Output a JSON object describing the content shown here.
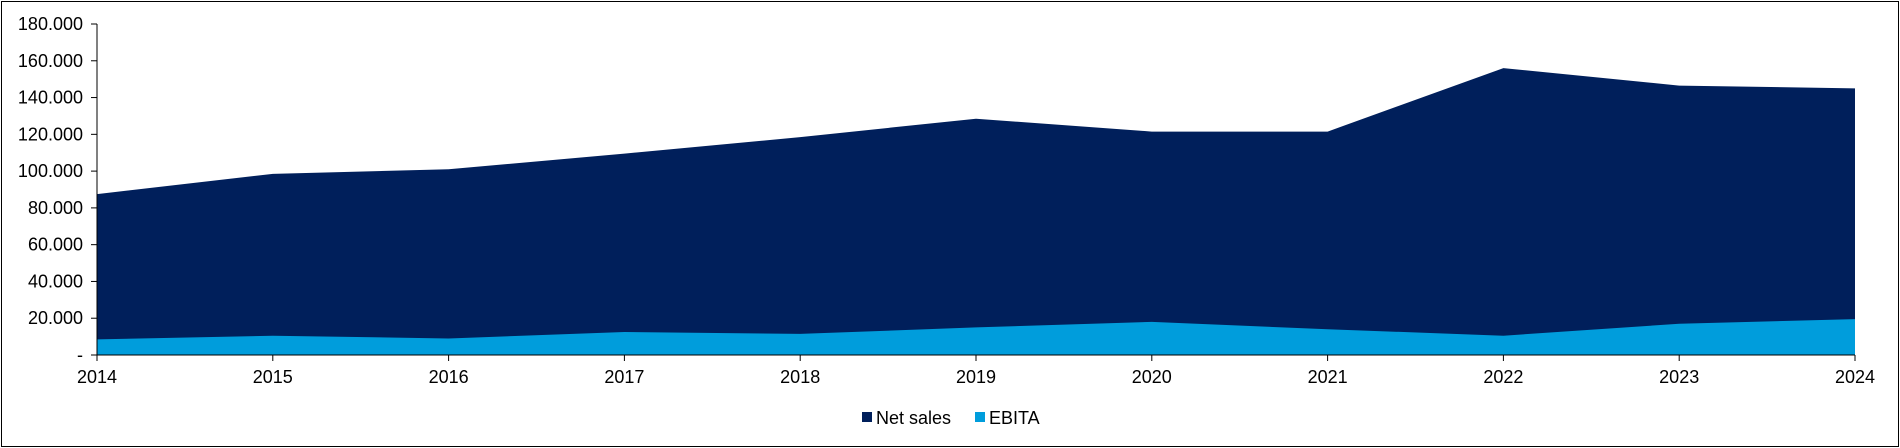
{
  "chart_data": {
    "type": "area",
    "stacking": "overlapping",
    "categories": [
      "2014",
      "2015",
      "2016",
      "2017",
      "2018",
      "2019",
      "2020",
      "2021",
      "2022",
      "2023",
      "2024"
    ],
    "series": [
      {
        "name": "Net sales",
        "color": "#001f5b",
        "values": [
          87500,
          98500,
          101000,
          109500,
          118500,
          128500,
          121500,
          121500,
          156000,
          146500,
          145000
        ]
      },
      {
        "name": "EBITA",
        "color": "#009ddc",
        "values": [
          8500,
          10500,
          9000,
          12500,
          11500,
          15000,
          18000,
          14000,
          10500,
          17000,
          19500
        ]
      }
    ],
    "yticks": [
      "-",
      "20.000",
      "40.000",
      "60.000",
      "80.000",
      "100.000",
      "120.000",
      "140.000",
      "160.000",
      "180.000"
    ],
    "ylim": [
      0,
      180000
    ],
    "legend_position": "bottom-center",
    "grid": false
  }
}
